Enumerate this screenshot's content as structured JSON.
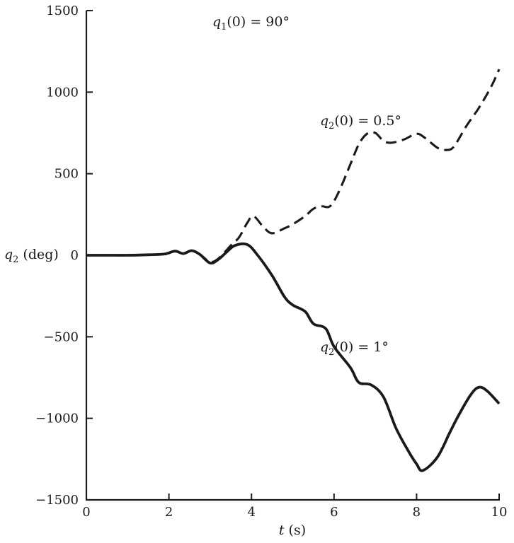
{
  "colors": {
    "ink": "#1a1a1a",
    "background": "#ffffff"
  },
  "figure": {
    "annotation": {
      "var": "q",
      "sub": "1",
      "rest": "(0) = 90°"
    },
    "ylabel": {
      "var": "q",
      "sub": "2",
      "rest": " (deg)"
    },
    "xlabel": {
      "var": "t",
      "rest": " (s)"
    },
    "series_labels": {
      "dashed": {
        "var": "q",
        "sub": "2",
        "rest": "(0) = 0.5°"
      },
      "solid": {
        "var": "q",
        "sub": "2",
        "rest": "(0) = 1°"
      }
    }
  },
  "chart_data": {
    "type": "line",
    "title": "q1(0) = 90°",
    "xlabel": "t (s)",
    "ylabel": "q2 (deg)",
    "xlim": [
      0,
      10
    ],
    "ylim": [
      -1500,
      1500
    ],
    "x_ticks": [
      0,
      2,
      4,
      6,
      8,
      10
    ],
    "y_ticks": [
      -1500,
      -1000,
      -500,
      0,
      500,
      1000,
      1500
    ],
    "grid": false,
    "legend": "inline-annotations",
    "series": [
      {
        "name": "q2(0) = 0.5°",
        "style": "dashed",
        "x": [
          0,
          0.5,
          1,
          1.5,
          1.9,
          2.15,
          2.35,
          2.55,
          2.75,
          3.0,
          3.2,
          3.5,
          3.7,
          3.9,
          4.05,
          4.3,
          4.5,
          4.8,
          5.0,
          5.3,
          5.5,
          5.7,
          5.9,
          6.1,
          6.4,
          6.6,
          6.8,
          7.0,
          7.2,
          7.4,
          7.7,
          8.0,
          8.2,
          8.5,
          8.7,
          8.9,
          9.2,
          9.5,
          9.8,
          10
        ],
        "values": [
          0,
          0,
          0,
          3,
          8,
          25,
          10,
          28,
          5,
          -40,
          -20,
          60,
          110,
          200,
          240,
          170,
          135,
          165,
          190,
          240,
          285,
          300,
          300,
          380,
          560,
          680,
          745,
          750,
          700,
          690,
          710,
          745,
          720,
          660,
          645,
          665,
          790,
          900,
          1030,
          1140
        ]
      },
      {
        "name": "q2(0) = 1°",
        "style": "solid",
        "x": [
          0,
          0.5,
          1,
          1.5,
          1.9,
          2.15,
          2.35,
          2.55,
          2.75,
          3.0,
          3.2,
          3.4,
          3.6,
          3.9,
          4.15,
          4.5,
          4.8,
          5.0,
          5.3,
          5.5,
          5.8,
          6.0,
          6.4,
          6.6,
          6.9,
          7.2,
          7.5,
          7.8,
          8.0,
          8.15,
          8.5,
          8.8,
          9.0,
          9.3,
          9.5,
          9.7,
          10
        ],
        "values": [
          0,
          0,
          0,
          3,
          8,
          25,
          10,
          28,
          5,
          -48,
          -25,
          20,
          60,
          65,
          0,
          -125,
          -255,
          -305,
          -345,
          -420,
          -450,
          -560,
          -690,
          -780,
          -795,
          -870,
          -1060,
          -1200,
          -1280,
          -1320,
          -1240,
          -1090,
          -990,
          -860,
          -810,
          -830,
          -910
        ]
      }
    ]
  }
}
